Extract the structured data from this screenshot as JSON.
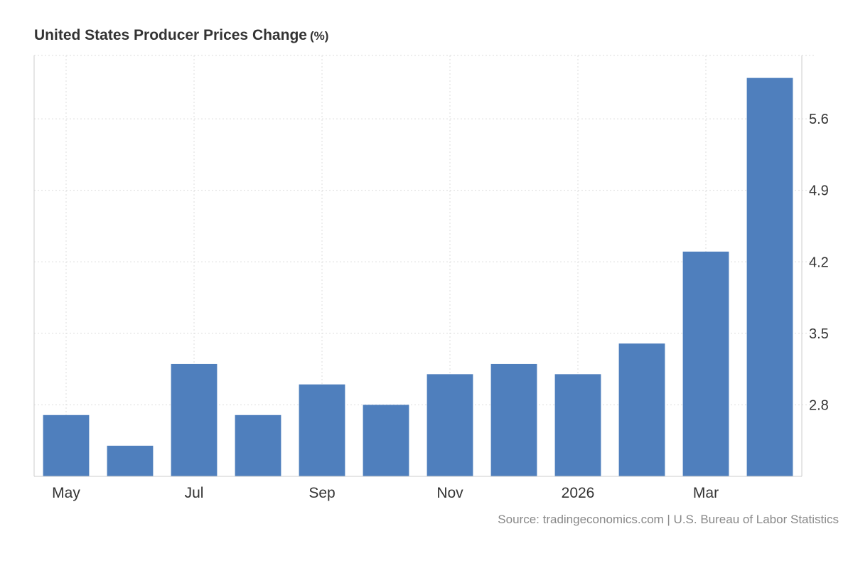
{
  "title": "United States Producer Prices Change",
  "unit": "(%)",
  "source": "Source: tradingeconomics.com | U.S. Bureau of Labor Statistics",
  "colors": {
    "bar": "#4f7fbd",
    "grid": "#dddddd",
    "axis": "#cccccc",
    "tick_text": "#333333",
    "source_text": "#888888"
  },
  "chart_data": {
    "type": "bar",
    "title": "United States Producer Prices Change (%)",
    "xlabel": "",
    "ylabel": "",
    "x_tick_labels": [
      "May",
      "",
      "Jul",
      "",
      "Sep",
      "",
      "Nov",
      "",
      "2026",
      "",
      "Mar",
      ""
    ],
    "values": [
      2.7,
      2.4,
      3.2,
      2.7,
      3.0,
      2.8,
      3.1,
      3.2,
      3.1,
      3.4,
      4.3,
      6.0
    ],
    "y_ticks": [
      2.8,
      3.5,
      4.2,
      4.9,
      5.6
    ],
    "ylim": [
      2.1,
      6.22
    ],
    "grid": true,
    "legend": "none",
    "y_axis_side": "right"
  }
}
